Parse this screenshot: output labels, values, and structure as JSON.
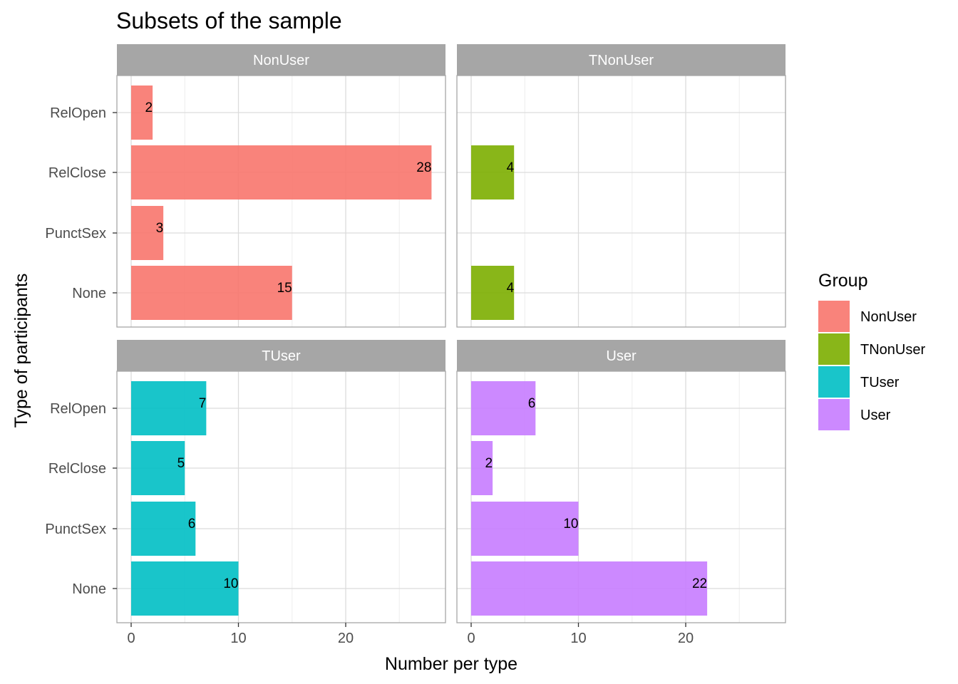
{
  "chart_data": {
    "type": "bar",
    "orientation": "horizontal",
    "title": "Subsets of the sample",
    "xlabel": "Number per type",
    "ylabel": "Type of participants",
    "xlim": [
      0,
      28
    ],
    "x_ticks": [
      "0",
      "10",
      "20"
    ],
    "categories": [
      "RelOpen",
      "RelClose",
      "PunctSex",
      "None"
    ],
    "grid": true,
    "legend": {
      "title": "Group",
      "placement": "right",
      "entries": [
        {
          "label": "NonUser",
          "color": "#F8766D"
        },
        {
          "label": "TNonUser",
          "color": "#7CAE00"
        },
        {
          "label": "TUser",
          "color": "#00BFC4"
        },
        {
          "label": "User",
          "color": "#C77CFF"
        }
      ]
    },
    "facets": [
      {
        "name": "NonUser",
        "color": "#F8766D",
        "values": {
          "RelOpen": 2,
          "RelClose": 28,
          "PunctSex": 3,
          "None": 15
        }
      },
      {
        "name": "TNonUser",
        "color": "#7CAE00",
        "values": {
          "RelClose": 4,
          "None": 4
        }
      },
      {
        "name": "TUser",
        "color": "#00BFC4",
        "values": {
          "RelOpen": 7,
          "RelClose": 5,
          "PunctSex": 6,
          "None": 10
        }
      },
      {
        "name": "User",
        "color": "#C77CFF",
        "values": {
          "RelOpen": 6,
          "RelClose": 2,
          "PunctSex": 10,
          "None": 22
        }
      }
    ]
  }
}
